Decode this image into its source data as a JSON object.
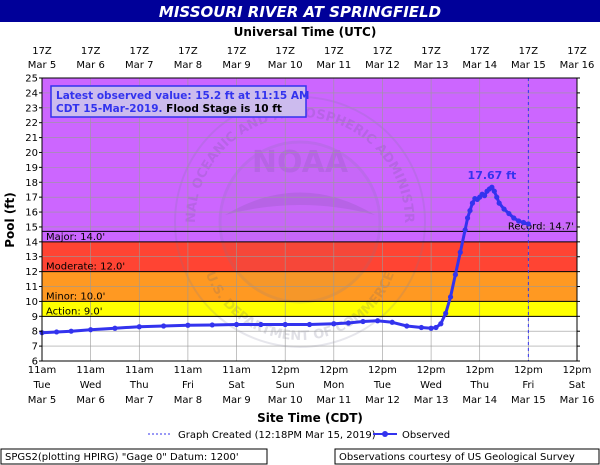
{
  "title": "MISSOURI RIVER AT SPRINGFIELD",
  "top_axis_title": "Universal Time (UTC)",
  "bottom_axis_title": "Site Time (CDT)",
  "ylabel": "Pool (ft)",
  "info_box": {
    "line1": "Latest observed value: 15.2 ft at 11:15 AM",
    "line2_prefix": "CDT 15-Mar-2019.",
    "line2_suffix": " Flood Stage is 10 ft"
  },
  "legend": {
    "created": "Graph Created (12:18PM Mar 15, 2019)",
    "observed": "Observed"
  },
  "footer": {
    "left": "SPGS2(plotting HPIRG) \"Gage 0\" Datum: 1200'",
    "right": "Observations courtesy of US Geological Survey"
  },
  "watermark": "NOAA",
  "watermark_ring": "NATIONAL OCEANIC AND ATMOSPHERIC ADMINISTRATION",
  "watermark_ring_bottom": "U.S. DEPARTMENT OF COMMERCE",
  "colors": {
    "record": "#cc66ff",
    "major": "#ff4433",
    "moderate": "#ff9922",
    "minor": "#ffff00",
    "action": "#ffffff",
    "line": "#3333ee",
    "title_bar": "#000099"
  },
  "chart_data": {
    "type": "line",
    "ylim": [
      6,
      25
    ],
    "xlim_days": [
      0,
      11
    ],
    "grid": true,
    "y_ticks": [
      6,
      7,
      8,
      9,
      10,
      11,
      12,
      13,
      14,
      15,
      16,
      17,
      18,
      19,
      20,
      21,
      22,
      23,
      24,
      25
    ],
    "bottom_ticks": [
      {
        "time": "11am",
        "day": "Tue",
        "date": "Mar 5"
      },
      {
        "time": "11am",
        "day": "Wed",
        "date": "Mar 6"
      },
      {
        "time": "11am",
        "day": "Thu",
        "date": "Mar 7"
      },
      {
        "time": "11am",
        "day": "Fri",
        "date": "Mar 8"
      },
      {
        "time": "11am",
        "day": "Sat",
        "date": "Mar 9"
      },
      {
        "time": "12pm",
        "day": "Sun",
        "date": "Mar 10"
      },
      {
        "time": "12pm",
        "day": "Mon",
        "date": "Mar 11"
      },
      {
        "time": "12pm",
        "day": "Tue",
        "date": "Mar 12"
      },
      {
        "time": "12pm",
        "day": "Wed",
        "date": "Mar 13"
      },
      {
        "time": "12pm",
        "day": "Thu",
        "date": "Mar 14"
      },
      {
        "time": "12pm",
        "day": "Fri",
        "date": "Mar 15"
      },
      {
        "time": "12pm",
        "day": "Sat",
        "date": "Mar 16"
      }
    ],
    "top_ticks": [
      {
        "time": "17Z",
        "date": "Mar 5"
      },
      {
        "time": "17Z",
        "date": "Mar 6"
      },
      {
        "time": "17Z",
        "date": "Mar 7"
      },
      {
        "time": "17Z",
        "date": "Mar 8"
      },
      {
        "time": "17Z",
        "date": "Mar 9"
      },
      {
        "time": "17Z",
        "date": "Mar 10"
      },
      {
        "time": "17Z",
        "date": "Mar 11"
      },
      {
        "time": "17Z",
        "date": "Mar 12"
      },
      {
        "time": "17Z",
        "date": "Mar 13"
      },
      {
        "time": "17Z",
        "date": "Mar 14"
      },
      {
        "time": "17Z",
        "date": "Mar 15"
      },
      {
        "time": "17Z",
        "date": "Mar 16"
      }
    ],
    "flood_categories": [
      {
        "name": "Record",
        "label": "Record: 14.7'",
        "value": 14.7
      },
      {
        "name": "Major",
        "label": "Major: 14.0'",
        "value": 14.0
      },
      {
        "name": "Moderate",
        "label": "Moderate: 12.0'",
        "value": 12.0
      },
      {
        "name": "Minor",
        "label": "Minor: 10.0'",
        "value": 10.0
      },
      {
        "name": "Action",
        "label": "Action: 9.0'",
        "value": 9.0
      }
    ],
    "peak": {
      "label": "17.67 ft",
      "x": 9.25,
      "y": 17.67
    },
    "graph_created_x": 10.0,
    "series": [
      {
        "name": "Observed",
        "x": [
          0.0,
          0.3,
          0.6,
          1.0,
          1.5,
          2.0,
          2.5,
          3.0,
          3.5,
          4.0,
          4.5,
          5.0,
          5.5,
          6.0,
          6.3,
          6.6,
          6.9,
          7.2,
          7.5,
          7.8,
          8.0,
          8.1,
          8.2,
          8.3,
          8.4,
          8.5,
          8.6,
          8.7,
          8.75,
          8.8,
          8.85,
          8.9,
          8.95,
          9.0,
          9.05,
          9.1,
          9.15,
          9.2,
          9.25,
          9.3,
          9.35,
          9.4,
          9.5,
          9.6,
          9.7,
          9.8,
          9.9,
          10.0
        ],
        "y": [
          7.9,
          7.95,
          8.0,
          8.1,
          8.2,
          8.3,
          8.35,
          8.4,
          8.42,
          8.45,
          8.45,
          8.45,
          8.45,
          8.5,
          8.55,
          8.65,
          8.7,
          8.6,
          8.35,
          8.25,
          8.2,
          8.25,
          8.5,
          9.2,
          10.3,
          11.8,
          13.3,
          14.8,
          15.6,
          16.1,
          16.6,
          16.9,
          16.85,
          17.0,
          17.2,
          17.1,
          17.4,
          17.55,
          17.67,
          17.4,
          17.0,
          16.6,
          16.2,
          15.9,
          15.6,
          15.4,
          15.3,
          15.2
        ]
      }
    ]
  }
}
